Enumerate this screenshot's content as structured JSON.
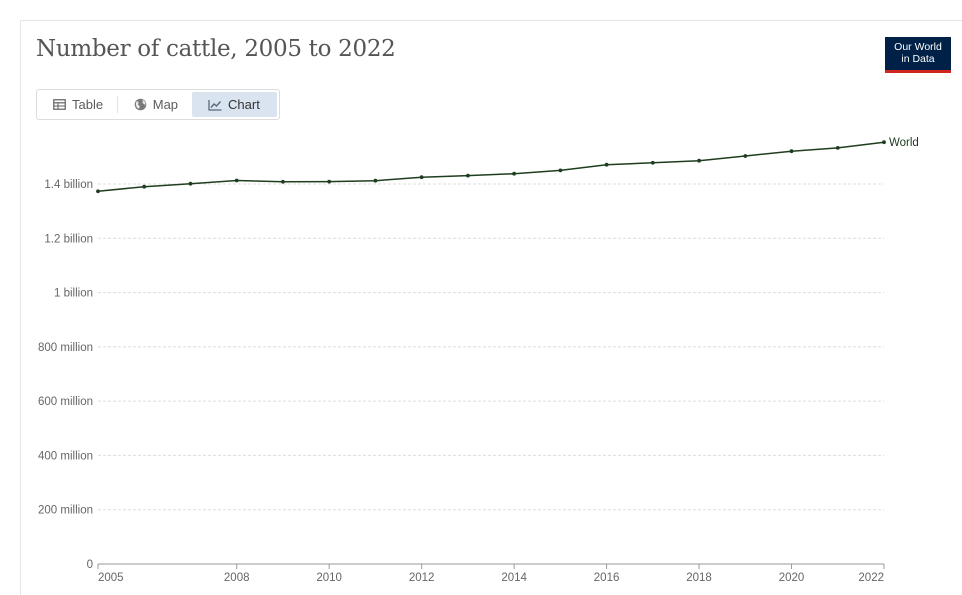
{
  "header": {
    "title": "Number of cattle, 2005 to 2022"
  },
  "logo": {
    "line1": "Our World",
    "line2": "in Data",
    "background": "#002147",
    "accent": "#ce261e"
  },
  "tabs": [
    {
      "label": "Table",
      "icon": "table-icon",
      "active": false
    },
    {
      "label": "Map",
      "icon": "globe-icon",
      "active": false
    },
    {
      "label": "Chart",
      "icon": "line-chart-icon",
      "active": true
    }
  ],
  "chart_data": {
    "type": "line",
    "title": "Number of cattle, 2005 to 2022",
    "x": [
      2005,
      2006,
      2007,
      2008,
      2009,
      2010,
      2011,
      2012,
      2013,
      2014,
      2015,
      2016,
      2017,
      2018,
      2019,
      2020,
      2021,
      2022
    ],
    "x_ticks": [
      2005,
      2008,
      2010,
      2012,
      2014,
      2016,
      2018,
      2020,
      2022
    ],
    "y_ticks": [
      0,
      200000000,
      400000000,
      600000000,
      800000000,
      1000000000,
      1200000000,
      1400000000
    ],
    "y_tick_labels": [
      "0",
      "200 million",
      "400 million",
      "600 million",
      "800 million",
      "1 billion",
      "1.2 billion",
      "1.4 billion"
    ],
    "xlim": [
      2005,
      2022
    ],
    "ylim": [
      0,
      1550000000
    ],
    "grid": "horizontal-dashed",
    "series": [
      {
        "name": "World",
        "color": "#1f3d1f",
        "values": [
          1373000000,
          1390000000,
          1401000000,
          1413000000,
          1408000000,
          1409000000,
          1412000000,
          1425000000,
          1431000000,
          1438000000,
          1450000000,
          1471000000,
          1478000000,
          1486000000,
          1503000000,
          1521000000,
          1533000000,
          1554000000
        ]
      }
    ]
  }
}
